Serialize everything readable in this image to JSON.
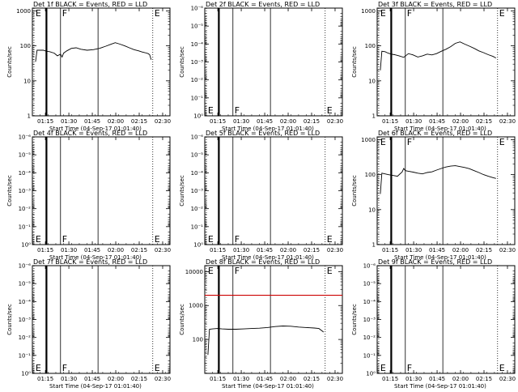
{
  "chart_data": [
    {
      "type": "line",
      "title": "Det 1f BLACK = Events, RED = LLD",
      "xlabel": "Start Time (04-Sep-17 01:01:40)",
      "ylabel": "Counts/sec",
      "x_ticks": [
        "01:15",
        "01:30",
        "01:45",
        "02:00",
        "02:15",
        "02:30"
      ],
      "x_tick_minutes": [
        73.33,
        88.33,
        103.33,
        118.33,
        133.33,
        148.33
      ],
      "xlim_minutes": [
        65,
        153
      ],
      "yscale": "log",
      "ylim": [
        1,
        1200
      ],
      "y_ticks": [
        "1",
        "10",
        "100",
        "1000"
      ],
      "y_tick_values": [
        1,
        10,
        100,
        1000
      ],
      "markers": [
        {
          "label": "E",
          "minute": 66,
          "style": "dotted"
        },
        {
          "label": "",
          "minute": 74,
          "style": "thick"
        },
        {
          "label": "F",
          "minute": 83,
          "style": "solid"
        },
        {
          "label": "",
          "minute": 107,
          "style": "solid"
        },
        {
          "label": "E",
          "minute": 142,
          "style": "dotted"
        }
      ],
      "series": [
        {
          "color": "#000000",
          "x": [
            67,
            68,
            72,
            74,
            76,
            79,
            81,
            83,
            84,
            85,
            87,
            90,
            93,
            96,
            100,
            104,
            108,
            112,
            115,
            118,
            121,
            124,
            127,
            130,
            133,
            135,
            137,
            139,
            140,
            141
          ],
          "y": [
            35,
            75,
            75,
            70,
            68,
            62,
            52,
            58,
            48,
            62,
            72,
            85,
            88,
            80,
            75,
            78,
            85,
            98,
            110,
            123,
            112,
            100,
            88,
            78,
            72,
            67,
            64,
            60,
            56,
            40
          ]
        }
      ]
    },
    {
      "type": "line",
      "title": "Det 2f BLACK = Events, RED = LLD",
      "xlabel": "Start Time (04-Sep-17 01:01:40)",
      "ylabel": "Counts/sec",
      "x_ticks": [
        "01:15",
        "01:30",
        "01:45",
        "02:00",
        "02:15",
        "02:30"
      ],
      "x_tick_minutes": [
        73.33,
        88.33,
        103.33,
        118.33,
        133.33,
        148.33
      ],
      "xlim_minutes": [
        65,
        153
      ],
      "yscale": "log",
      "ylim": [
        1,
        1e-06
      ],
      "y_ticks": [
        "10⁰",
        "10⁻¹",
        "10⁻²",
        "10⁻³",
        "10⁻⁴",
        "10⁻⁵",
        "10⁻⁶"
      ],
      "y_tick_values": [
        1,
        0.1,
        0.01,
        0.001,
        0.0001,
        1e-05,
        1e-06
      ],
      "markers": [
        {
          "label": "E",
          "minute": 66,
          "style": "dotted"
        },
        {
          "label": "",
          "minute": 74,
          "style": "thick"
        },
        {
          "label": "F",
          "minute": 83,
          "style": "solid"
        },
        {
          "label": "",
          "minute": 107,
          "style": "solid"
        },
        {
          "label": "E",
          "minute": 142,
          "style": "dotted"
        }
      ],
      "series": []
    },
    {
      "type": "line",
      "title": "Det 3f BLACK = Events, RED = LLD",
      "xlabel": "Start Time (04-Sep-17 01:01:40)",
      "ylabel": "Counts/sec",
      "x_ticks": [
        "01:15",
        "01:30",
        "01:45",
        "02:00",
        "02:15",
        "02:30"
      ],
      "x_tick_minutes": [
        73.33,
        88.33,
        103.33,
        118.33,
        133.33,
        148.33
      ],
      "xlim_minutes": [
        65,
        153
      ],
      "yscale": "log",
      "ylim": [
        1,
        1200
      ],
      "y_ticks": [
        "1",
        "10",
        "100",
        "1000"
      ],
      "y_tick_values": [
        1,
        10,
        100,
        1000
      ],
      "markers": [
        {
          "label": "E",
          "minute": 66,
          "style": "dotted"
        },
        {
          "label": "",
          "minute": 74,
          "style": "thick"
        },
        {
          "label": "F",
          "minute": 83,
          "style": "solid"
        },
        {
          "label": "",
          "minute": 107,
          "style": "solid"
        },
        {
          "label": "E",
          "minute": 142,
          "style": "dotted"
        }
      ],
      "series": [
        {
          "color": "#000000",
          "x": [
            67,
            68,
            70,
            72,
            74,
            76,
            79,
            82,
            85,
            88,
            91,
            94,
            97,
            100,
            103,
            106,
            109,
            112,
            115,
            118,
            121,
            124,
            127,
            130,
            133,
            136,
            139,
            141
          ],
          "y": [
            20,
            70,
            68,
            62,
            58,
            56,
            52,
            47,
            60,
            55,
            48,
            52,
            58,
            55,
            60,
            70,
            80,
            95,
            118,
            130,
            112,
            98,
            85,
            72,
            64,
            56,
            50,
            45
          ]
        }
      ]
    },
    {
      "type": "line",
      "title": "Det 4f BLACK = Events, RED = LLD",
      "xlabel": "Start Time (04-Sep-17 01:01:40)",
      "ylabel": "Counts/sec",
      "x_ticks": [
        "01:15",
        "01:30",
        "01:45",
        "02:00",
        "02:15",
        "02:30"
      ],
      "x_tick_minutes": [
        73.33,
        88.33,
        103.33,
        118.33,
        133.33,
        148.33
      ],
      "xlim_minutes": [
        65,
        153
      ],
      "yscale": "log",
      "ylim": [
        1,
        1e-06
      ],
      "y_ticks": [
        "10⁰",
        "10⁻¹",
        "10⁻²",
        "10⁻³",
        "10⁻⁴",
        "10⁻⁵",
        "10⁻⁶"
      ],
      "y_tick_values": [
        1,
        0.1,
        0.01,
        0.001,
        0.0001,
        1e-05,
        1e-06
      ],
      "markers": [
        {
          "label": "E",
          "minute": 66,
          "style": "dotted"
        },
        {
          "label": "",
          "minute": 74,
          "style": "thick"
        },
        {
          "label": "F",
          "minute": 83,
          "style": "solid"
        },
        {
          "label": "",
          "minute": 107,
          "style": "solid"
        },
        {
          "label": "E",
          "minute": 142,
          "style": "dotted"
        }
      ],
      "series": []
    },
    {
      "type": "line",
      "title": "Det 5f BLACK = Events, RED = LLD",
      "xlabel": "Start Time (04-Sep-17 01:01:40)",
      "ylabel": "Counts/sec",
      "x_ticks": [
        "01:15",
        "01:30",
        "01:45",
        "02:00",
        "02:15",
        "02:30"
      ],
      "x_tick_minutes": [
        73.33,
        88.33,
        103.33,
        118.33,
        133.33,
        148.33
      ],
      "xlim_minutes": [
        65,
        153
      ],
      "yscale": "log",
      "ylim": [
        1,
        1e-06
      ],
      "y_ticks": [
        "10⁰",
        "10⁻¹",
        "10⁻²",
        "10⁻³",
        "10⁻⁴",
        "10⁻⁵",
        "10⁻⁶"
      ],
      "y_tick_values": [
        1,
        0.1,
        0.01,
        0.001,
        0.0001,
        1e-05,
        1e-06
      ],
      "markers": [
        {
          "label": "E",
          "minute": 66,
          "style": "dotted"
        },
        {
          "label": "",
          "minute": 74,
          "style": "thick"
        },
        {
          "label": "F",
          "minute": 83,
          "style": "solid"
        },
        {
          "label": "",
          "minute": 107,
          "style": "solid"
        },
        {
          "label": "E",
          "minute": 142,
          "style": "dotted"
        }
      ],
      "series": []
    },
    {
      "type": "line",
      "title": "Det 6f BLACK = Events, RED = LLD",
      "xlabel": "Start Time (04-Sep-17 01:01:40)",
      "ylabel": "Counts/sec",
      "x_ticks": [
        "01:15",
        "01:30",
        "01:45",
        "02:00",
        "02:15",
        "02:30"
      ],
      "x_tick_minutes": [
        73.33,
        88.33,
        103.33,
        118.33,
        133.33,
        148.33
      ],
      "xlim_minutes": [
        65,
        153
      ],
      "yscale": "log",
      "ylim": [
        1,
        1200
      ],
      "y_ticks": [
        "1",
        "10",
        "100",
        "1000"
      ],
      "y_tick_values": [
        1,
        10,
        100,
        1000
      ],
      "markers": [
        {
          "label": "E",
          "minute": 66,
          "style": "dotted"
        },
        {
          "label": "",
          "minute": 74,
          "style": "thick"
        },
        {
          "label": "F",
          "minute": 83,
          "style": "solid"
        },
        {
          "label": "",
          "minute": 107,
          "style": "solid"
        },
        {
          "label": "E",
          "minute": 142,
          "style": "dotted"
        }
      ],
      "series": [
        {
          "color": "#000000",
          "x": [
            67,
            68,
            70,
            72,
            75,
            78,
            81,
            82,
            83,
            85,
            88,
            91,
            94,
            97,
            100,
            103,
            106,
            109,
            112,
            115,
            118,
            121,
            124,
            127,
            130,
            133,
            136,
            139,
            141
          ],
          "y": [
            28,
            110,
            105,
            100,
            95,
            90,
            120,
            150,
            130,
            125,
            118,
            110,
            105,
            115,
            120,
            135,
            150,
            165,
            175,
            180,
            170,
            160,
            148,
            130,
            115,
            100,
            90,
            82,
            78
          ]
        }
      ]
    },
    {
      "type": "line",
      "title": "Det 7f BLACK = Events, RED = LLD",
      "xlabel": "Start Time (04-Sep-17 01:01:40)",
      "ylabel": "Counts/sec",
      "x_ticks": [
        "01:15",
        "01:30",
        "01:45",
        "02:00",
        "02:15",
        "02:30"
      ],
      "x_tick_minutes": [
        73.33,
        88.33,
        103.33,
        118.33,
        133.33,
        148.33
      ],
      "xlim_minutes": [
        65,
        153
      ],
      "yscale": "log",
      "ylim": [
        1,
        1e-06
      ],
      "y_ticks": [
        "10⁰",
        "10⁻¹",
        "10⁻²",
        "10⁻³",
        "10⁻⁴",
        "10⁻⁵",
        "10⁻⁶"
      ],
      "y_tick_values": [
        1,
        0.1,
        0.01,
        0.001,
        0.0001,
        1e-05,
        1e-06
      ],
      "markers": [
        {
          "label": "E",
          "minute": 66,
          "style": "dotted"
        },
        {
          "label": "",
          "minute": 74,
          "style": "thick"
        },
        {
          "label": "F",
          "minute": 83,
          "style": "solid"
        },
        {
          "label": "",
          "minute": 107,
          "style": "solid"
        },
        {
          "label": "E",
          "minute": 142,
          "style": "dotted"
        }
      ],
      "series": []
    },
    {
      "type": "line",
      "title": "Det 8f BLACK = Events, RED = LLD",
      "xlabel": "Start Time (04-Sep-17 01:01:40)",
      "ylabel": "Counts/sec",
      "x_ticks": [
        "01:15",
        "01:30",
        "01:45",
        "02:00",
        "02:15",
        "02:30"
      ],
      "x_tick_minutes": [
        73.33,
        88.33,
        103.33,
        118.33,
        133.33,
        148.33
      ],
      "xlim_minutes": [
        65,
        153
      ],
      "yscale": "log",
      "ylim": [
        10,
        15000
      ],
      "y_ticks": [
        "100",
        "1000",
        "10000"
      ],
      "y_tick_values": [
        100,
        1000,
        10000
      ],
      "markers": [
        {
          "label": "E",
          "minute": 66,
          "style": "dotted"
        },
        {
          "label": "",
          "minute": 74,
          "style": "thick"
        },
        {
          "label": "F",
          "minute": 83,
          "style": "solid"
        },
        {
          "label": "",
          "minute": 107,
          "style": "solid"
        },
        {
          "label": "E",
          "minute": 142,
          "style": "dotted"
        }
      ],
      "series": [
        {
          "color": "#000000",
          "x": [
            67,
            68,
            70,
            73,
            76,
            80,
            85,
            90,
            95,
            100,
            105,
            110,
            115,
            120,
            125,
            130,
            135,
            138,
            141
          ],
          "y": [
            35,
            200,
            205,
            210,
            205,
            200,
            200,
            205,
            210,
            215,
            225,
            240,
            250,
            245,
            232,
            225,
            218,
            210,
            165
          ]
        },
        {
          "color": "#cc0000",
          "x": [
            65,
            153
          ],
          "y": [
            2000,
            2000
          ]
        }
      ]
    },
    {
      "type": "line",
      "title": "Det 9f BLACK = Events, RED = LLD",
      "xlabel": "Start Time (04-Sep-17 01:01:40)",
      "ylabel": "Counts/sec",
      "x_ticks": [
        "01:15",
        "01:30",
        "01:45",
        "02:00",
        "02:15",
        "02:30"
      ],
      "x_tick_minutes": [
        73.33,
        88.33,
        103.33,
        118.33,
        133.33,
        148.33
      ],
      "xlim_minutes": [
        65,
        153
      ],
      "yscale": "log",
      "ylim": [
        1,
        1e-06
      ],
      "y_ticks": [
        "10⁰",
        "10⁻¹",
        "10⁻²",
        "10⁻³",
        "10⁻⁴",
        "10⁻⁵",
        "10⁻⁶"
      ],
      "y_tick_values": [
        1,
        0.1,
        0.01,
        0.001,
        0.0001,
        1e-05,
        1e-06
      ],
      "markers": [
        {
          "label": "E",
          "minute": 66,
          "style": "dotted"
        },
        {
          "label": "",
          "minute": 74,
          "style": "thick"
        },
        {
          "label": "F",
          "minute": 83,
          "style": "solid"
        },
        {
          "label": "",
          "minute": 107,
          "style": "solid"
        },
        {
          "label": "E",
          "minute": 142,
          "style": "dotted"
        }
      ],
      "series": []
    }
  ]
}
